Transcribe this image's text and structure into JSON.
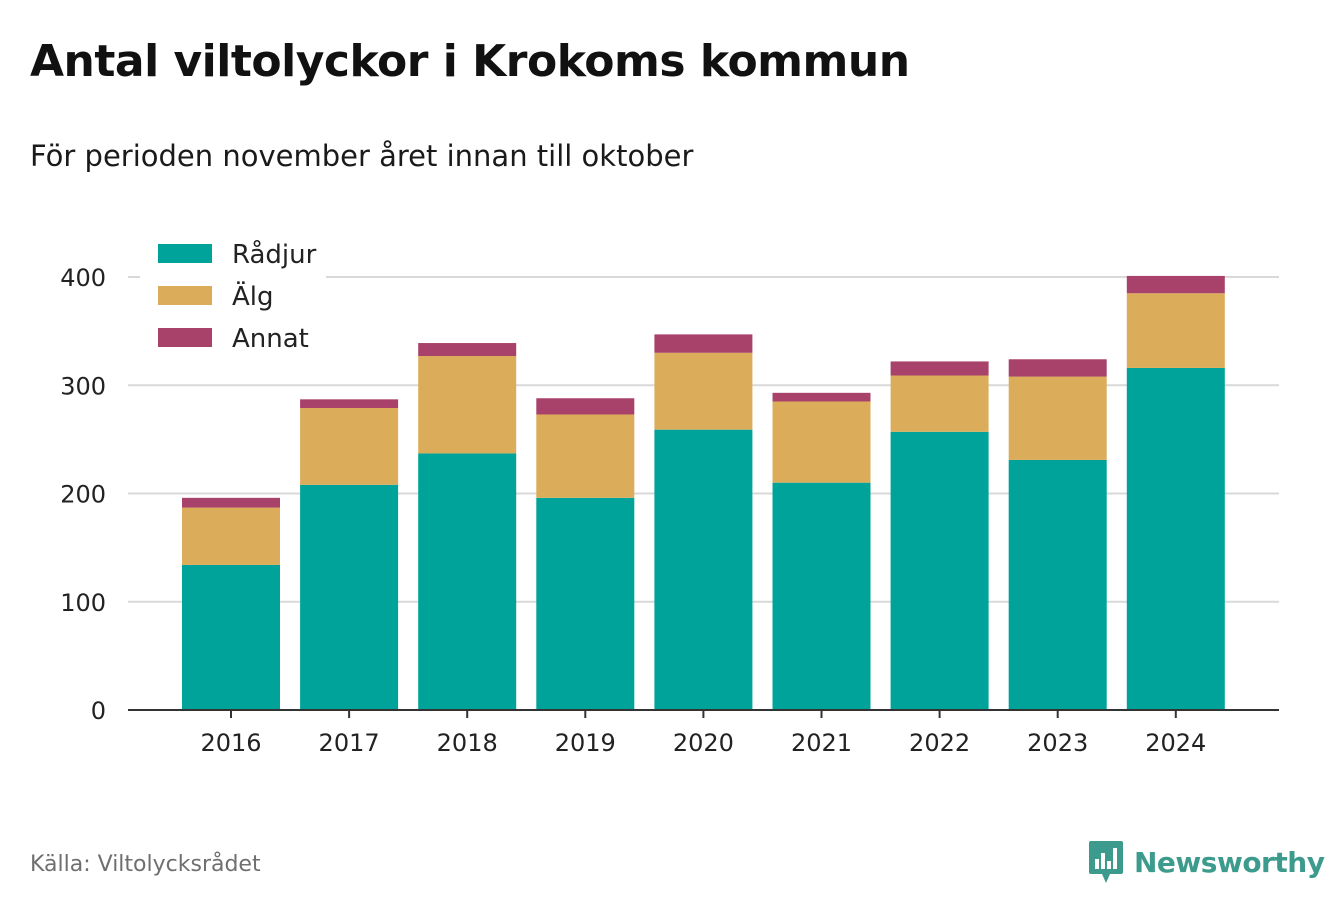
{
  "title": "Antal viltolyckor i Krokoms kommun",
  "subtitle": "För perioden november året innan till oktober",
  "source": "Källa: Viltolycksrådet",
  "brand": "Newsworthy",
  "brand_icon": "newsworthy-bar-chart-logo-icon",
  "colors": {
    "Rådjur": "#00a39a",
    "Älg": "#dbac5a",
    "Annat": "#a8426a",
    "grid": "#d9d9d9",
    "axis": "#333333",
    "brand": "#3c9b8c"
  },
  "chart_data": {
    "type": "bar",
    "stacked": true,
    "categories": [
      "2016",
      "2017",
      "2018",
      "2019",
      "2020",
      "2021",
      "2022",
      "2023",
      "2024"
    ],
    "series": [
      {
        "name": "Rådjur",
        "values": [
          134,
          208,
          237,
          196,
          259,
          210,
          257,
          231,
          316
        ]
      },
      {
        "name": "Älg",
        "values": [
          53,
          71,
          90,
          77,
          71,
          75,
          52,
          77,
          69
        ]
      },
      {
        "name": "Annat",
        "values": [
          9,
          8,
          12,
          15,
          17,
          8,
          13,
          16,
          16
        ]
      }
    ],
    "yticks": [
      0,
      100,
      200,
      300,
      400
    ],
    "ylim": [
      0,
      400
    ],
    "grid": true,
    "legend": "top-left"
  }
}
